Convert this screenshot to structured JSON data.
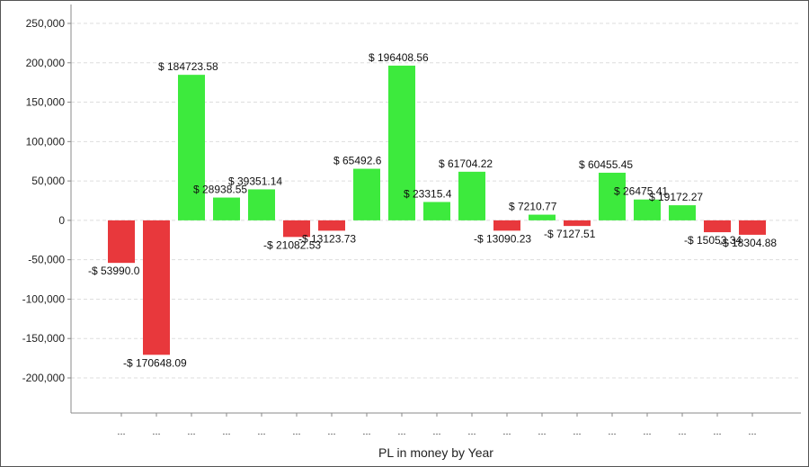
{
  "chart_data": {
    "type": "bar",
    "title": "",
    "xlabel": "PL in money by Year",
    "ylabel": "",
    "ylim": [
      -250000,
      250000
    ],
    "yticks": [
      250000,
      200000,
      150000,
      100000,
      50000,
      0,
      -50000,
      -100000,
      -150000,
      -200000
    ],
    "ytick_labels": [
      "250,000",
      "200,000",
      "150,000",
      "100,000",
      "50,000",
      "0",
      "-50,000",
      "-100,000",
      "-150,000",
      "-200,000"
    ],
    "grid": true,
    "legend": "none",
    "categories": [
      "...",
      "...",
      "...",
      "...",
      "...",
      "...",
      "...",
      "...",
      "...",
      "...",
      "...",
      "...",
      "...",
      "...",
      "...",
      "...",
      "...",
      "...",
      "..."
    ],
    "values": [
      -53990.0,
      -170648.09,
      184723.58,
      28938.55,
      39351.14,
      -21082.53,
      -13123.73,
      65492.6,
      196408.56,
      23315.4,
      61704.22,
      -13090.23,
      7210.77,
      -7127.51,
      60455.45,
      26475.41,
      19172.27,
      -15053.34,
      -18304.88
    ],
    "data_labels": [
      "-$ 53990.0",
      "-$ 170648.09",
      "$ 184723.58",
      "$ 28938.55",
      "$ 39351.14",
      "-$ 21082.53",
      "-$ 13123.73",
      "$ 65492.6",
      "$ 196408.56",
      "$ 23315.4",
      "$ 61704.22",
      "-$ 13090.23",
      "$ 7210.77",
      "-$ 7127.51",
      "$ 60455.45",
      "$ 26475.41",
      "$ 19172.27",
      "-$ 15053.34",
      "-$ 18304.88"
    ],
    "colors": {
      "positive": "#3dea3d",
      "negative": "#e8383c",
      "grid": "#dddddd",
      "axis": "#888888"
    }
  }
}
